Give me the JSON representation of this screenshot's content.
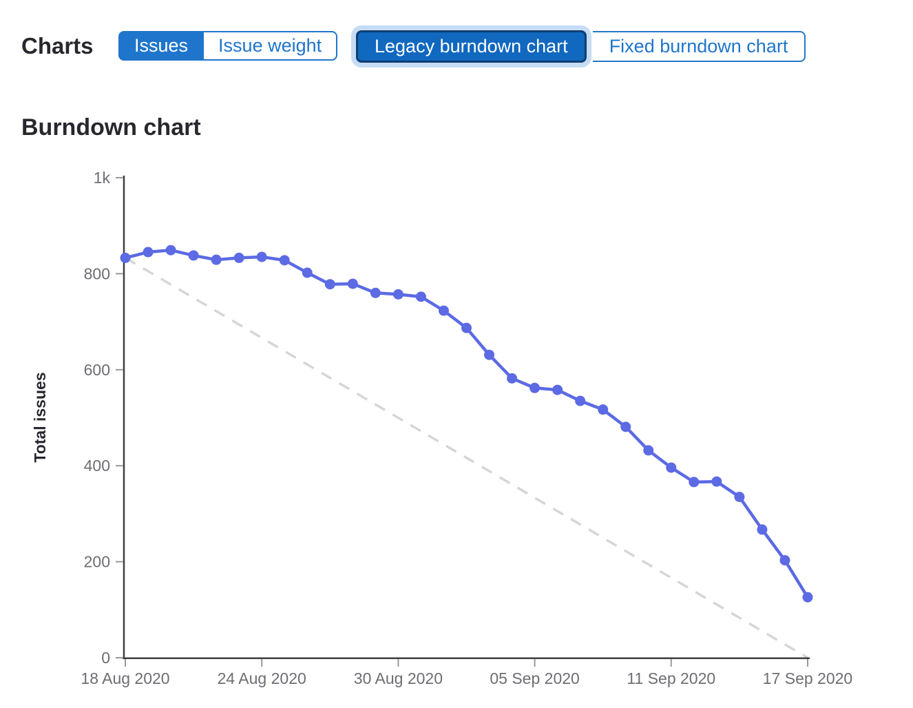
{
  "header": {
    "charts_label": "Charts",
    "metric_toggle": {
      "options": [
        {
          "label": "Issues",
          "selected": true
        },
        {
          "label": "Issue weight",
          "selected": false
        }
      ]
    },
    "chart_type_toggle": {
      "options": [
        {
          "label": "Legacy burndown chart",
          "selected": true,
          "focused": true
        },
        {
          "label": "Fixed burndown chart",
          "selected": false
        }
      ]
    }
  },
  "section_title": "Burndown chart",
  "colors": {
    "accent_blue": "#1f75cb",
    "selected_button_bg": "#1068bf",
    "selected_button_border": "#0e3e70",
    "focus_ring": "#c6dcf5",
    "series_line": "#5c6ae4",
    "ideal_line": "#d6d6d6",
    "axis_line": "#3f3f3f",
    "tick_mark": "#9a9a9a",
    "tick_text": "#6d6d73",
    "heading_text": "#28272d"
  },
  "chart_data": {
    "type": "line",
    "title": "Burndown chart",
    "xlabel": "",
    "ylabel": "Total issues",
    "ylim": [
      0,
      1000
    ],
    "grid": false,
    "legend": "none",
    "n_points": 31,
    "y_ticks": {
      "values": [
        0,
        200,
        400,
        600,
        800,
        1000
      ],
      "labels": [
        "0",
        "200",
        "400",
        "600",
        "800",
        "1k"
      ]
    },
    "x_ticks": {
      "point_indices": [
        0,
        6,
        12,
        18,
        24,
        30
      ],
      "labels": [
        "18 Aug 2020",
        "24 Aug 2020",
        "30 Aug 2020",
        "05 Sep 2020",
        "11 Sep 2020",
        "17 Sep 2020"
      ]
    },
    "series": [
      {
        "name": "Total issues",
        "style": "solid-with-points",
        "values": [
          833,
          845,
          849,
          838,
          829,
          833,
          835,
          828,
          802,
          778,
          779,
          760,
          757,
          752,
          723,
          687,
          631,
          582,
          562,
          558,
          535,
          517,
          481,
          432,
          396,
          366,
          367,
          335,
          267,
          203,
          126
        ]
      },
      {
        "name": "Guideline",
        "style": "dashed",
        "endpoints": [
          833,
          0
        ]
      }
    ]
  }
}
